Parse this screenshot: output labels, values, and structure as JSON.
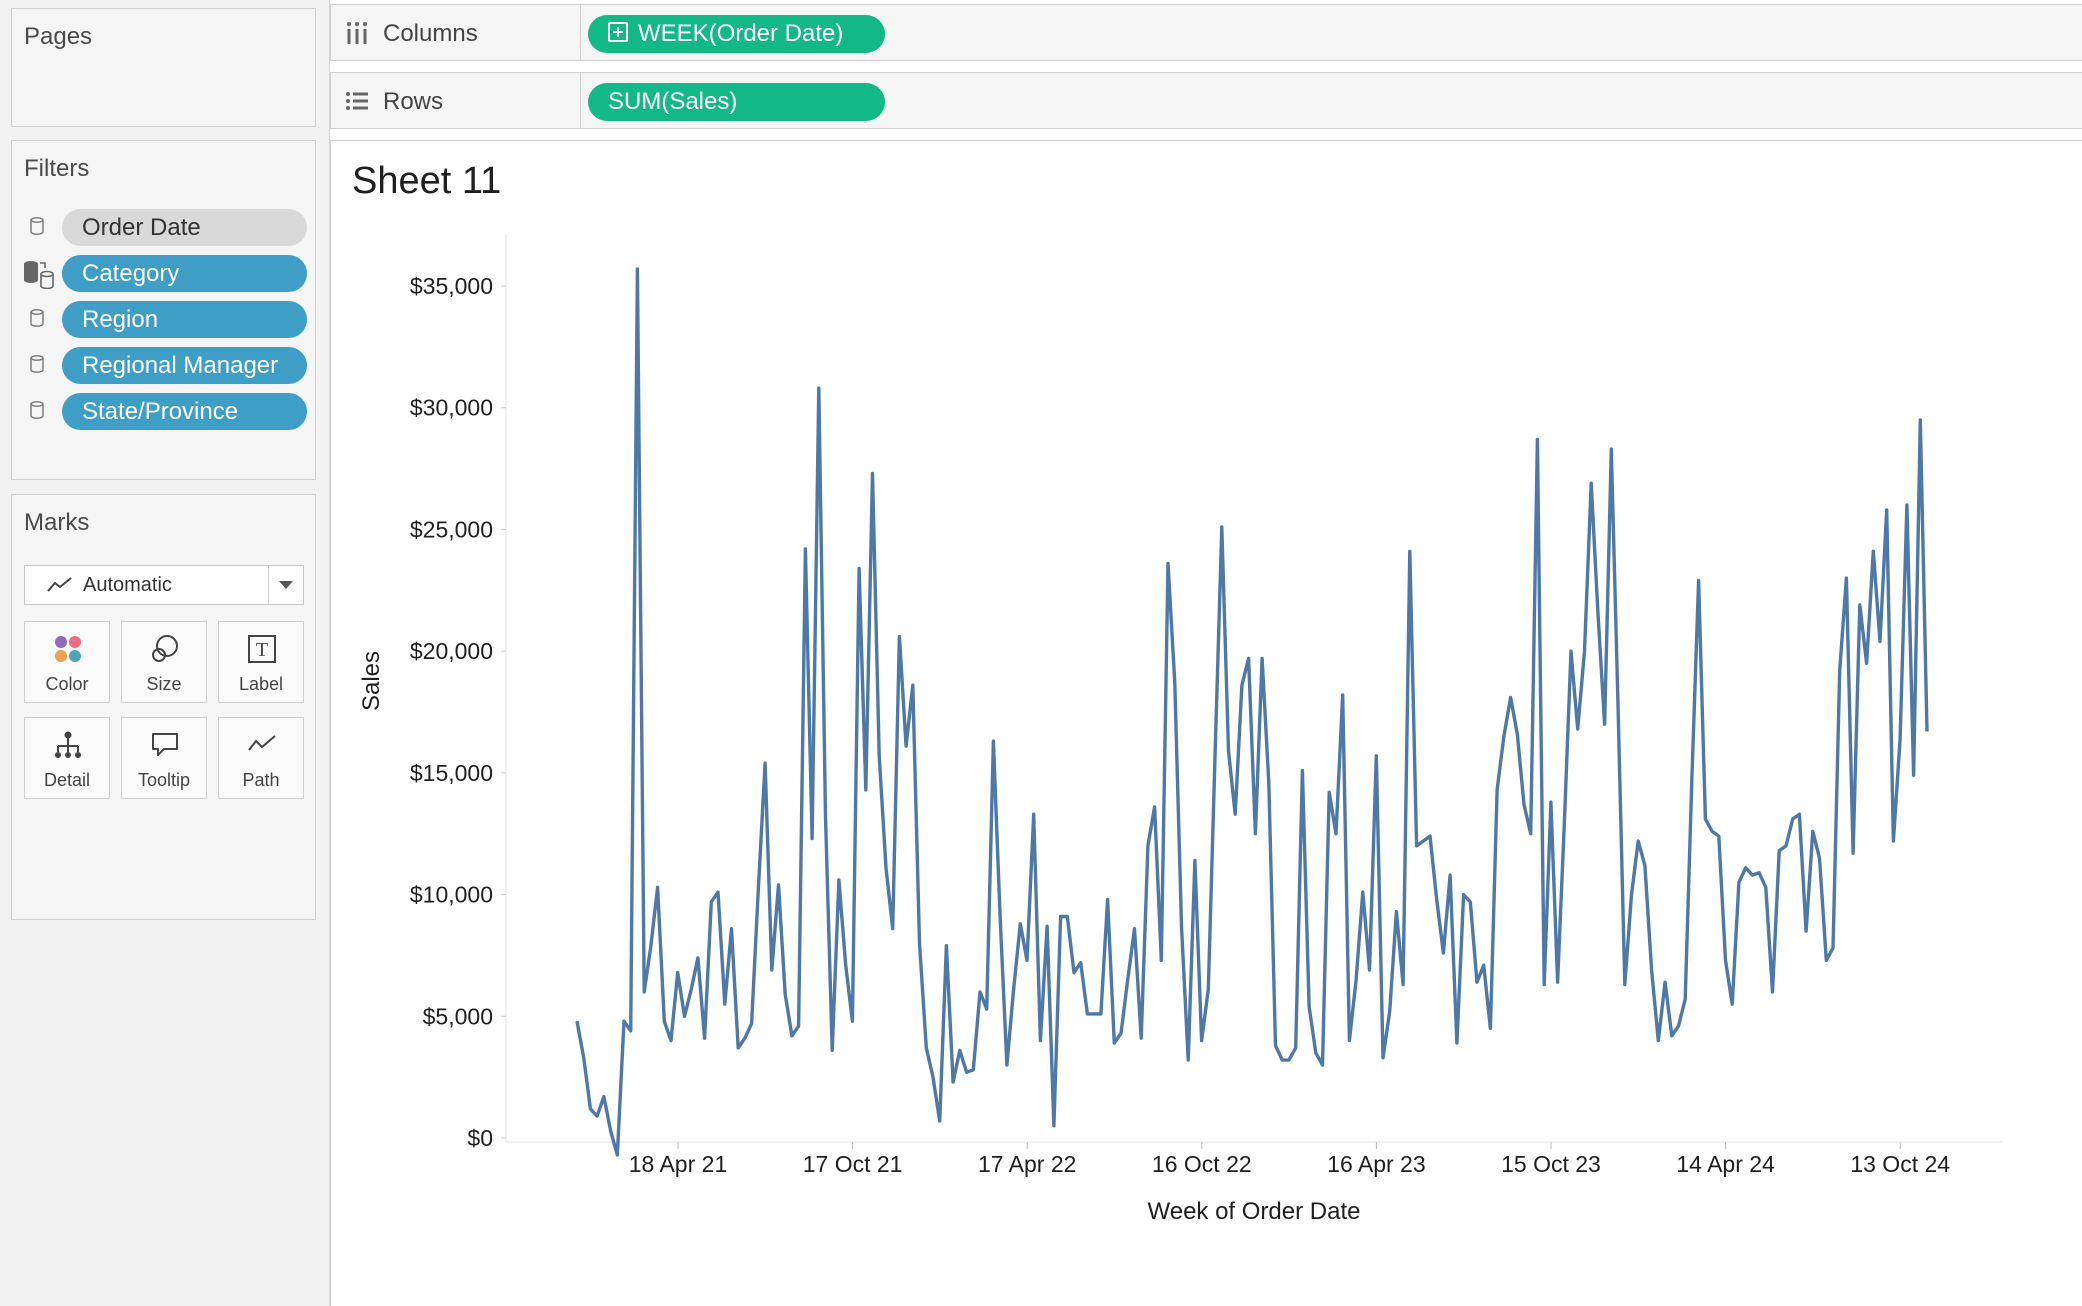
{
  "pages_panel": {
    "title": "Pages"
  },
  "columns_shelf": {
    "label": "Columns",
    "pill": "WEEK(Order Date)",
    "pill_color": "#12b886"
  },
  "rows_shelf": {
    "label": "Rows",
    "pill": "SUM(Sales)",
    "pill_color": "#12b886"
  },
  "filters_panel": {
    "title": "Filters",
    "items": [
      {
        "label": "Order Date",
        "style": "gray"
      },
      {
        "label": "Category",
        "style": "blue"
      },
      {
        "label": "Region",
        "style": "blue"
      },
      {
        "label": "Regional Manager",
        "style": "blue"
      },
      {
        "label": "State/Province",
        "style": "blue"
      }
    ]
  },
  "marks_panel": {
    "title": "Marks",
    "mark_type": "Automatic",
    "buttons": [
      {
        "label": "Color",
        "icon": "color-icon"
      },
      {
        "label": "Size",
        "icon": "size-icon"
      },
      {
        "label": "Label",
        "icon": "label-icon"
      },
      {
        "label": "Detail",
        "icon": "detail-icon"
      },
      {
        "label": "Tooltip",
        "icon": "tooltip-icon"
      },
      {
        "label": "Path",
        "icon": "path-icon"
      }
    ]
  },
  "sheet": {
    "title": "Sheet 11"
  },
  "chart_data": {
    "type": "line",
    "title": "Sheet 11",
    "xlabel": "Week of Order Date",
    "ylabel": "Sales",
    "y_ticks": [
      "$0",
      "$5,000",
      "$10,000",
      "$15,000",
      "$20,000",
      "$25,000",
      "$30,000",
      "$35,000"
    ],
    "x_ticks": [
      "18 Apr 21",
      "17 Oct 21",
      "17 Apr 22",
      "16 Oct 22",
      "16 Apr 23",
      "15 Oct 23",
      "14 Apr 24",
      "13 Oct 24"
    ],
    "ylim": [
      0,
      37000
    ],
    "line_color": "#4e79a7",
    "grid": false,
    "series": [
      {
        "values": [
          4800,
          3300,
          1200,
          900,
          1700,
          300,
          -700,
          4800,
          4400,
          35700,
          6000,
          7900,
          10300,
          4800,
          4000,
          6800,
          5000,
          6100,
          7400,
          4100,
          9700,
          10100,
          5500,
          8600,
          3700,
          4100,
          4700,
          10200,
          15400,
          6900,
          10400,
          5900,
          4200,
          4600,
          24200,
          12300,
          30800,
          13200,
          3600,
          10600,
          7100,
          4800,
          23400,
          14300,
          27300,
          15700,
          11100,
          8600,
          20600,
          16100,
          18600,
          8000,
          3700,
          2500,
          700,
          7900,
          2300,
          3600,
          2700,
          2800,
          6000,
          5300,
          16300,
          9100,
          3000,
          6100,
          8800,
          7300,
          13300,
          4000,
          8700,
          500,
          9100,
          9100,
          6800,
          7200,
          5100,
          5100,
          5100,
          9800,
          3900,
          4300,
          6500,
          8600,
          4100,
          12000,
          13600,
          7300,
          23600,
          18700,
          8700,
          3200,
          11400,
          4000,
          6100,
          15800,
          25100,
          15900,
          13300,
          18600,
          19700,
          12500,
          19700,
          14600,
          3800,
          3200,
          3200,
          3700,
          15100,
          5400,
          3500,
          3000,
          14200,
          12500,
          18200,
          4000,
          6500,
          10100,
          6900,
          15700,
          3300,
          5200,
          9300,
          6300,
          24100,
          12000,
          12200,
          12400,
          9800,
          7600,
          10800,
          3900,
          10000,
          9700,
          6400,
          7100,
          4500,
          14300,
          16500,
          18100,
          16600,
          13700,
          12500,
          28700,
          6300,
          13800,
          6400,
          12900,
          20000,
          16800,
          20000,
          26900,
          21600,
          17000,
          28300,
          17800,
          6300,
          10000,
          12200,
          11200,
          6900,
          4000,
          6400,
          4200,
          4600,
          5700,
          14800,
          22900,
          13100,
          12600,
          12400,
          7300,
          5500,
          10500,
          11100,
          10800,
          10900,
          10300,
          6000,
          11800,
          12000,
          13100,
          13300,
          8500,
          12600,
          11500,
          7300,
          7800,
          19200,
          23000,
          11700,
          21900,
          19500,
          24100,
          20400,
          25800,
          12200,
          16400,
          26000,
          14900,
          29500,
          16700
        ],
        "x_start": "2021-02-14",
        "x_end": "2024-12-22"
      }
    ]
  }
}
